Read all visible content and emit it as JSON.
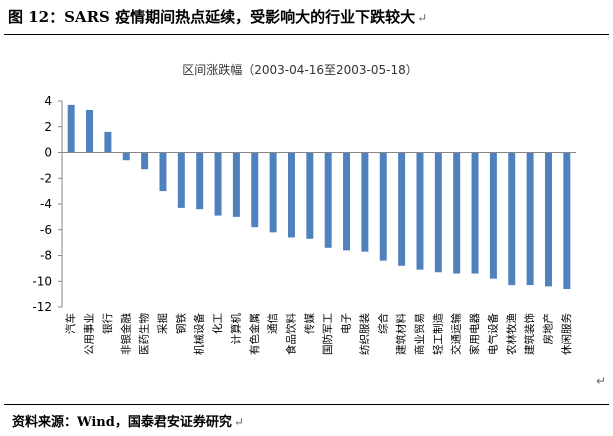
{
  "figure": {
    "title": "图 12：SARS 疫情期间热点延续，受影响大的行业下跌较大",
    "source": "资料来源：Wind，国泰君安证券研究",
    "return_mark": "↵"
  },
  "chart_data": {
    "type": "bar",
    "title": "区间涨跌幅（2003-04-16至2003-05-18）",
    "xlabel": "",
    "ylabel": "",
    "ylim": [
      -12,
      4
    ],
    "yticks": [
      4,
      2,
      0,
      -2,
      -4,
      -6,
      -8,
      -10,
      -12
    ],
    "grid": false,
    "bar_color": "#4F81BD",
    "categories": [
      "汽车",
      "公用事业",
      "银行",
      "非银金融",
      "医药生物",
      "采掘",
      "钢铁",
      "机械设备",
      "化工",
      "计算机",
      "有色金属",
      "通信",
      "食品饮料",
      "传媒",
      "国防军工",
      "电子",
      "纺织服装",
      "综合",
      "建筑材料",
      "商业贸易",
      "轻工制造",
      "交通运输",
      "家用电器",
      "电气设备",
      "农林牧渔",
      "建筑装饰",
      "房地产",
      "休闲服务"
    ],
    "values": [
      3.7,
      3.3,
      1.6,
      -0.6,
      -1.3,
      -3.0,
      -4.3,
      -4.4,
      -4.9,
      -5.0,
      -5.8,
      -6.2,
      -6.6,
      -6.7,
      -7.4,
      -7.6,
      -7.7,
      -8.4,
      -8.8,
      -9.1,
      -9.3,
      -9.4,
      -9.4,
      -9.8,
      -10.3,
      -10.3,
      -10.4,
      -10.6
    ]
  }
}
